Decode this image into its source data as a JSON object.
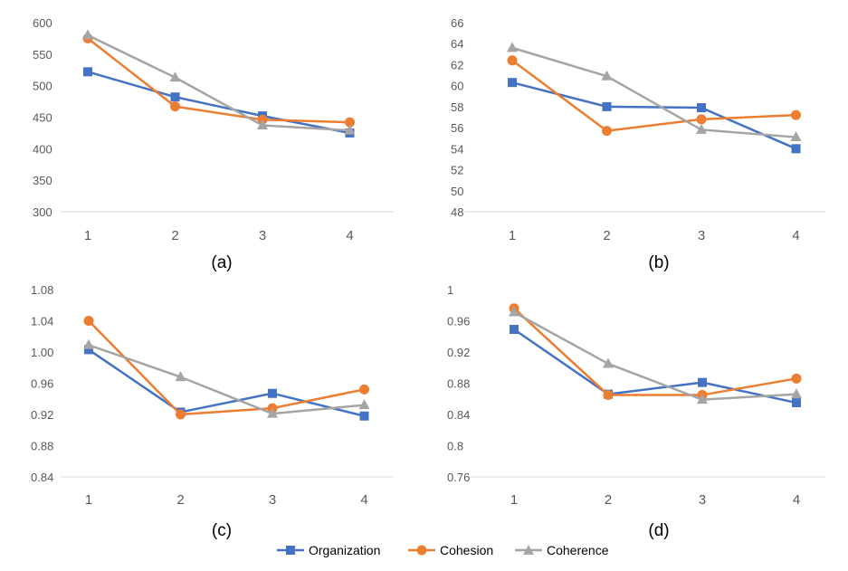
{
  "chart_data": [
    {
      "type": "line",
      "caption": "(a)",
      "categories": [
        "1",
        "2",
        "3",
        "4"
      ],
      "ylim": [
        300,
        600
      ],
      "yticks": [
        300,
        350,
        400,
        450,
        500,
        550,
        600
      ],
      "ytick_labels": [
        "300",
        "350",
        "400",
        "450",
        "500",
        "550",
        "600"
      ],
      "grid": false,
      "series": [
        {
          "name": "Organization",
          "values": [
            522,
            482,
            452,
            425
          ]
        },
        {
          "name": "Cohesion",
          "values": [
            575,
            467,
            446,
            442
          ]
        },
        {
          "name": "Coherence",
          "values": [
            580,
            513,
            437,
            429
          ]
        }
      ]
    },
    {
      "type": "line",
      "caption": "(b)",
      "categories": [
        "1",
        "2",
        "3",
        "4"
      ],
      "ylim": [
        48,
        66
      ],
      "yticks": [
        48,
        50,
        52,
        54,
        56,
        58,
        60,
        62,
        64,
        66
      ],
      "ytick_labels": [
        "48",
        "50",
        "52",
        "54",
        "56",
        "58",
        "60",
        "62",
        "64",
        "66"
      ],
      "grid": false,
      "series": [
        {
          "name": "Organization",
          "values": [
            60.3,
            58.0,
            57.9,
            54.0
          ]
        },
        {
          "name": "Cohesion",
          "values": [
            62.4,
            55.7,
            56.8,
            57.2
          ]
        },
        {
          "name": "Coherence",
          "values": [
            63.6,
            60.9,
            55.8,
            55.1
          ]
        }
      ]
    },
    {
      "type": "line",
      "caption": "(c)",
      "categories": [
        "1",
        "2",
        "3",
        "4"
      ],
      "ylim": [
        0.84,
        1.08
      ],
      "yticks": [
        0.84,
        0.88,
        0.92,
        0.96,
        1.0,
        1.04,
        1.08
      ],
      "ytick_labels": [
        "0.84",
        "0.88",
        "0.92",
        "0.96",
        "1.00",
        "1.04",
        "1.08"
      ],
      "grid": false,
      "series": [
        {
          "name": "Organization",
          "values": [
            1.003,
            0.923,
            0.947,
            0.918
          ]
        },
        {
          "name": "Cohesion",
          "values": [
            1.04,
            0.92,
            0.928,
            0.952
          ]
        },
        {
          "name": "Coherence",
          "values": [
            1.009,
            0.968,
            0.921,
            0.932
          ]
        }
      ]
    },
    {
      "type": "line",
      "caption": "(d)",
      "categories": [
        "1",
        "2",
        "3",
        "4"
      ],
      "ylim": [
        0.76,
        1.0
      ],
      "yticks": [
        0.76,
        0.8,
        0.84,
        0.88,
        0.92,
        0.96,
        1.0
      ],
      "ytick_labels": [
        "0.76",
        "0.8",
        "0.84",
        "0.88",
        "0.92",
        "0.96",
        "1"
      ],
      "grid": false,
      "series": [
        {
          "name": "Organization",
          "values": [
            0.949,
            0.866,
            0.881,
            0.855
          ]
        },
        {
          "name": "Cohesion",
          "values": [
            0.976,
            0.865,
            0.865,
            0.886
          ]
        },
        {
          "name": "Coherence",
          "values": [
            0.971,
            0.905,
            0.859,
            0.866
          ]
        }
      ]
    }
  ],
  "legend": {
    "placement": "bottom-center",
    "items": [
      {
        "label": "Organization",
        "color": "#4472C4",
        "marker": "square"
      },
      {
        "label": "Cohesion",
        "color": "#ED7D31",
        "marker": "circle"
      },
      {
        "label": "Coherence",
        "color": "#A5A5A5",
        "marker": "triangle"
      }
    ]
  },
  "colors": {
    "Organization": "#4472C4",
    "Cohesion": "#ED7D31",
    "Coherence": "#A5A5A5",
    "axis": "#D9D9D9",
    "tick_text": "#595959"
  }
}
